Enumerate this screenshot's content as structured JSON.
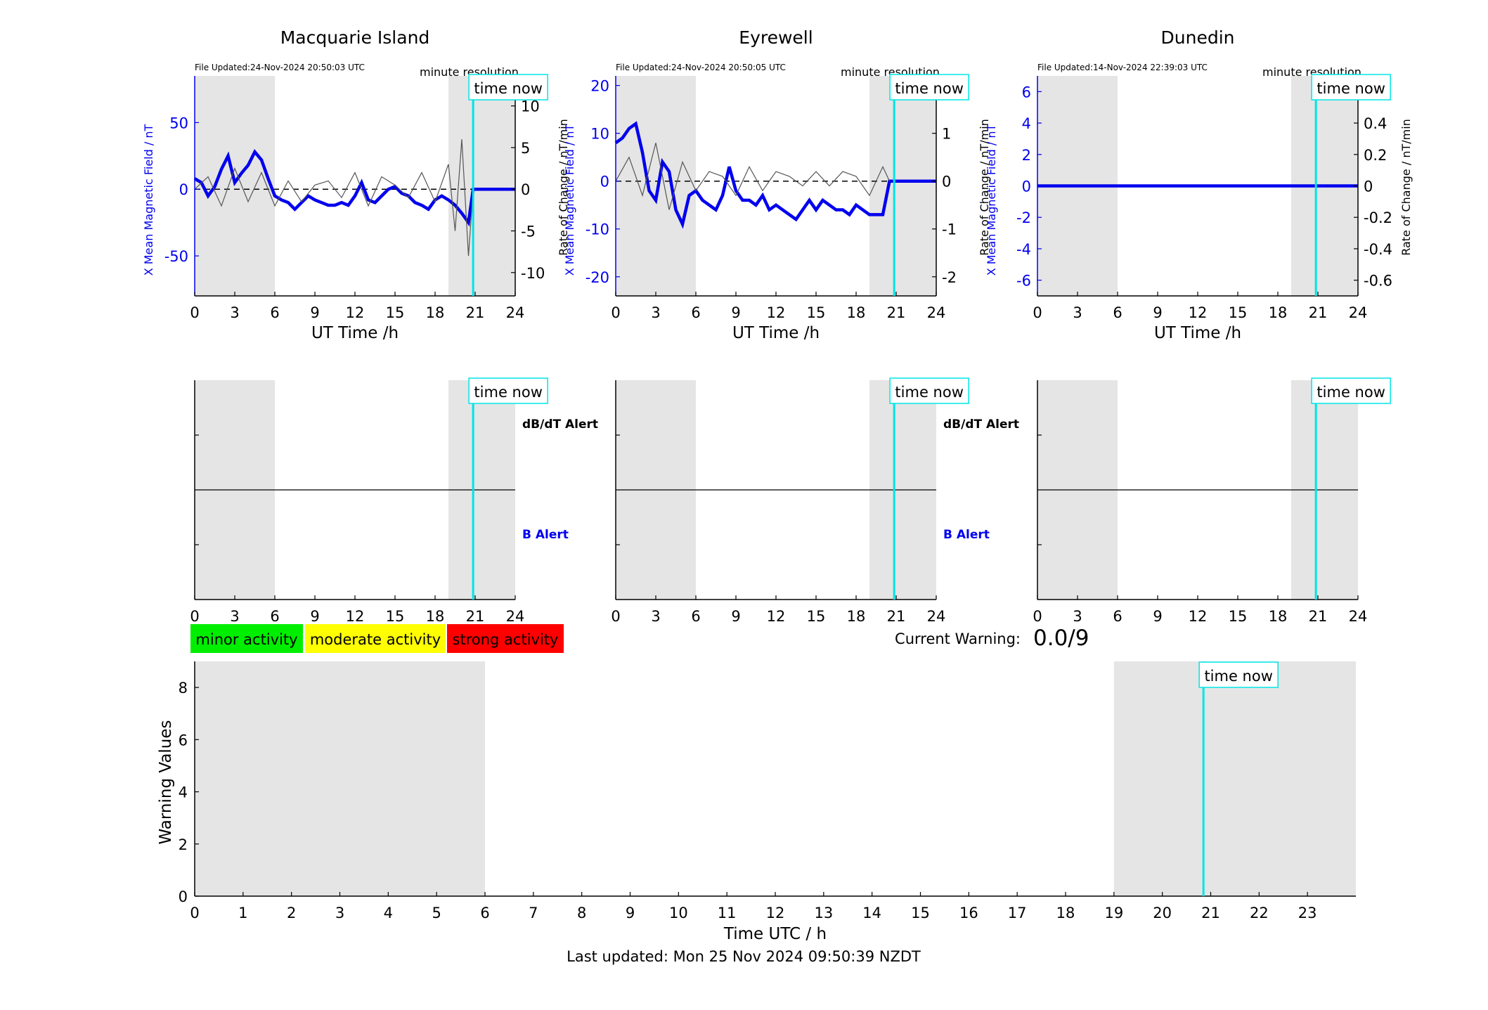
{
  "page": {
    "last_updated": "Last updated: Mon 25 Nov 2024 09:50:39 NZDT"
  },
  "colors": {
    "b_field": "#0000ee",
    "rate": "#555555",
    "time_now": "#00e5e5",
    "shade": "#e5e5e5",
    "b_alert": "#0000ee",
    "minor": "#00ee00",
    "moderate": "#ffff00",
    "strong": "#ff0000"
  },
  "legend": {
    "minor": "minor activity",
    "moderate": "moderate activity",
    "strong": "strong activity"
  },
  "current_warning": {
    "label": "Current Warning:",
    "value": "0.0/9"
  },
  "time_now_label": "time now",
  "resolution_label": "minute resolution",
  "alert_labels": {
    "dbdt": "dB/dT Alert",
    "b": "B Alert"
  },
  "chart_data": [
    {
      "type": "line",
      "title": "Macquarie Island",
      "file_updated": "File Updated:24-Nov-2024 20:50:03 UTC",
      "xlabel": "UT Time /h",
      "ylabel_left": "X Mean Magnetic Field / nT",
      "ylabel_right": "Rate of Change / nT/min",
      "xlim": [
        0,
        24
      ],
      "xticks": [
        0,
        3,
        6,
        9,
        12,
        15,
        18,
        21,
        24
      ],
      "ylim_left": [
        -80,
        85
      ],
      "yticks_left": [
        -50,
        0,
        50
      ],
      "ylim_right": [
        -12.8,
        13.6
      ],
      "yticks_right": [
        -10,
        -5,
        0,
        5,
        10
      ],
      "shaded_ranges": [
        [
          0,
          6
        ],
        [
          19,
          24
        ]
      ],
      "time_now": 20.85,
      "series": [
        {
          "axis": "left",
          "x": [
            0,
            0.5,
            1,
            1.5,
            2,
            2.5,
            3,
            3.5,
            4,
            4.5,
            5,
            5.5,
            6,
            6.5,
            7,
            7.5,
            8,
            8.5,
            9,
            9.5,
            10,
            10.5,
            11,
            11.5,
            12,
            12.5,
            13,
            13.5,
            14,
            14.5,
            15,
            15.5,
            16,
            16.5,
            17,
            17.5,
            18,
            18.5,
            19,
            19.5,
            20,
            20.5,
            20.85,
            21,
            24
          ],
          "y": [
            8,
            5,
            -5,
            2,
            15,
            25,
            5,
            12,
            18,
            28,
            22,
            8,
            -5,
            -8,
            -10,
            -15,
            -10,
            -5,
            -8,
            -10,
            -12,
            -12,
            -10,
            -12,
            -5,
            5,
            -8,
            -10,
            -5,
            0,
            2,
            -3,
            -5,
            -10,
            -12,
            -15,
            -8,
            -5,
            -8,
            -12,
            -18,
            -25,
            0,
            0,
            0
          ]
        },
        {
          "axis": "right",
          "x": [
            0,
            1,
            2,
            3,
            4,
            5,
            6,
            7,
            8,
            9,
            10,
            11,
            12,
            13,
            14,
            15,
            16,
            17,
            18,
            19,
            19.5,
            20,
            20.5,
            20.85
          ],
          "y": [
            0,
            1.5,
            -2,
            2.5,
            -1.5,
            2,
            -2,
            1,
            -1.5,
            0.5,
            1,
            -1,
            2,
            -2,
            1.5,
            0.5,
            -1,
            2,
            -1.5,
            3,
            -5,
            6,
            -8,
            0
          ]
        }
      ]
    },
    {
      "type": "line",
      "title": "Eyrewell",
      "file_updated": "File Updated:24-Nov-2024 20:50:05 UTC",
      "xlabel": "UT Time /h",
      "ylabel_left": "X Mean Magnetic Field / nT",
      "ylabel_right": "Rate of Change / nT/min",
      "xlim": [
        0,
        24
      ],
      "xticks": [
        0,
        3,
        6,
        9,
        12,
        15,
        18,
        21,
        24
      ],
      "ylim_left": [
        -24,
        22
      ],
      "yticks_left": [
        -20,
        -10,
        0,
        10,
        20
      ],
      "ylim_right": [
        -2.4,
        2.2
      ],
      "yticks_right": [
        -2,
        -1,
        0,
        1,
        2
      ],
      "shaded_ranges": [
        [
          0,
          6
        ],
        [
          19,
          24
        ]
      ],
      "time_now": 20.85,
      "series": [
        {
          "axis": "left",
          "x": [
            0,
            0.5,
            1,
            1.5,
            2,
            2.5,
            3,
            3.5,
            4,
            4.5,
            5,
            5.5,
            6,
            6.5,
            7,
            7.5,
            8,
            8.5,
            9,
            9.5,
            10,
            10.5,
            11,
            11.5,
            12,
            12.5,
            13,
            13.5,
            14,
            14.5,
            15,
            15.5,
            16,
            16.5,
            17,
            17.5,
            18,
            18.5,
            19,
            19.5,
            20,
            20.5,
            21,
            24
          ],
          "y": [
            8,
            9,
            11,
            12,
            6,
            -2,
            -4,
            4,
            2,
            -6,
            -9,
            -3,
            -2,
            -4,
            -5,
            -6,
            -3,
            3,
            -2,
            -4,
            -4,
            -5,
            -3,
            -6,
            -5,
            -6,
            -7,
            -8,
            -6,
            -4,
            -6,
            -4,
            -5,
            -6,
            -6,
            -7,
            -5,
            -6,
            -7,
            -7,
            -7,
            0,
            0,
            0
          ]
        },
        {
          "axis": "right",
          "x": [
            0,
            1,
            2,
            3,
            4,
            5,
            6,
            7,
            8,
            9,
            10,
            11,
            12,
            13,
            14,
            15,
            16,
            17,
            18,
            19,
            20,
            20.5
          ],
          "y": [
            0,
            0.5,
            -0.3,
            0.8,
            -0.6,
            0.4,
            -0.2,
            0.2,
            0.1,
            -0.3,
            0.3,
            -0.2,
            0.2,
            0.1,
            -0.1,
            0.2,
            -0.1,
            0.2,
            0.1,
            -0.3,
            0.3,
            0
          ]
        }
      ]
    },
    {
      "type": "line",
      "title": "Dunedin",
      "file_updated": "File Updated:14-Nov-2024 22:39:03 UTC",
      "xlabel": "UT Time /h",
      "ylabel_left": "X Mean Magnetic Field / nT",
      "ylabel_right": "Rate of Change / nT/min",
      "xlim": [
        0,
        24
      ],
      "xticks": [
        0,
        3,
        6,
        9,
        12,
        15,
        18,
        21,
        24
      ],
      "ylim_left": [
        -7,
        7
      ],
      "yticks_left": [
        -6,
        -4,
        -2,
        0,
        2,
        4,
        6
      ],
      "ylim_right": [
        -0.7,
        0.7
      ],
      "yticks_right": [
        -0.6,
        -0.4,
        -0.2,
        0,
        0.2,
        0.4,
        0.6
      ],
      "shaded_ranges": [
        [
          0,
          6
        ],
        [
          19,
          24
        ]
      ],
      "time_now": 20.85,
      "series": [
        {
          "axis": "left",
          "x": [
            0,
            24
          ],
          "y": [
            0,
            0
          ]
        }
      ]
    },
    {
      "type": "line",
      "xlim": [
        0,
        24
      ],
      "xticks": [
        0,
        3,
        6,
        9,
        12,
        15,
        18,
        21,
        24
      ],
      "shaded_ranges": [
        [
          0,
          6
        ],
        [
          19,
          24
        ]
      ],
      "time_now": 20.85,
      "series": []
    },
    {
      "type": "line",
      "xlim": [
        0,
        24
      ],
      "xticks": [
        0,
        3,
        6,
        9,
        12,
        15,
        18,
        21,
        24
      ],
      "shaded_ranges": [
        [
          0,
          6
        ],
        [
          19,
          24
        ]
      ],
      "time_now": 20.85,
      "series": []
    },
    {
      "type": "line",
      "xlim": [
        0,
        24
      ],
      "xticks": [
        0,
        3,
        6,
        9,
        12,
        15,
        18,
        21,
        24
      ],
      "shaded_ranges": [
        [
          0,
          6
        ],
        [
          19,
          24
        ]
      ],
      "time_now": 20.85,
      "series": []
    },
    {
      "type": "line",
      "xlabel": "Time UTC / h",
      "ylabel": "Warning Values",
      "xlim": [
        0,
        24
      ],
      "xticks": [
        0,
        1,
        2,
        3,
        4,
        5,
        6,
        7,
        8,
        9,
        10,
        11,
        12,
        13,
        14,
        15,
        16,
        17,
        18,
        19,
        20,
        21,
        22,
        23
      ],
      "ylim": [
        0,
        9
      ],
      "yticks": [
        0,
        2,
        4,
        6,
        8
      ],
      "shaded_ranges": [
        [
          0,
          6
        ],
        [
          19,
          24
        ]
      ],
      "time_now": 20.85,
      "series": []
    }
  ]
}
